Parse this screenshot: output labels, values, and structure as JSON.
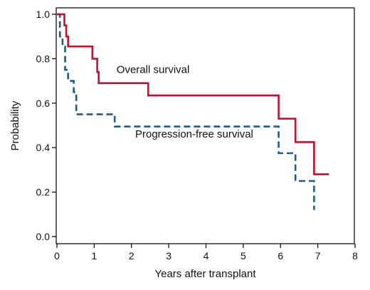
{
  "chart_data": {
    "type": "line",
    "step": true,
    "xlabel": "Years after transplant",
    "ylabel": "Probability",
    "xlim": [
      0,
      8
    ],
    "ylim": [
      0.0,
      1.0
    ],
    "xticks": [
      "0",
      "1",
      "2",
      "3",
      "4",
      "5",
      "6",
      "7",
      "8"
    ],
    "yticks": [
      "0.0",
      "0.2",
      "0.4",
      "0.6",
      "0.8",
      "1.0"
    ],
    "grid": false,
    "legend": "none",
    "annotations": [
      {
        "text": "Overall survival",
        "x": 1.6,
        "y": 0.735
      },
      {
        "text": "Progression-free survival",
        "x": 2.1,
        "y": 0.445
      }
    ],
    "series": [
      {
        "name": "Overall survival",
        "color": "#c8102e",
        "style": "solid",
        "x": [
          0.0,
          0.2,
          0.2,
          0.25,
          0.25,
          0.3,
          0.3,
          0.95,
          0.95,
          1.08,
          1.08,
          1.12,
          1.12,
          2.45,
          2.45,
          5.95,
          5.95,
          6.4,
          6.4,
          6.9,
          6.9,
          7.3
        ],
        "y": [
          1.0,
          1.0,
          0.95,
          0.95,
          0.9,
          0.9,
          0.855,
          0.855,
          0.8,
          0.8,
          0.74,
          0.74,
          0.69,
          0.69,
          0.635,
          0.635,
          0.53,
          0.53,
          0.425,
          0.425,
          0.28,
          0.28
        ]
      },
      {
        "name": "Progression-free survival",
        "color": "#1f5a8c",
        "style": "dashed",
        "x": [
          0.0,
          0.08,
          0.08,
          0.15,
          0.15,
          0.22,
          0.22,
          0.3,
          0.3,
          0.45,
          0.45,
          0.52,
          0.52,
          1.55,
          1.55,
          5.95,
          5.95,
          6.4,
          6.4,
          6.9,
          6.9
        ],
        "y": [
          1.0,
          1.0,
          0.9,
          0.9,
          0.855,
          0.855,
          0.75,
          0.75,
          0.7,
          0.7,
          0.65,
          0.65,
          0.55,
          0.55,
          0.495,
          0.495,
          0.375,
          0.375,
          0.25,
          0.25,
          0.12
        ]
      }
    ]
  }
}
